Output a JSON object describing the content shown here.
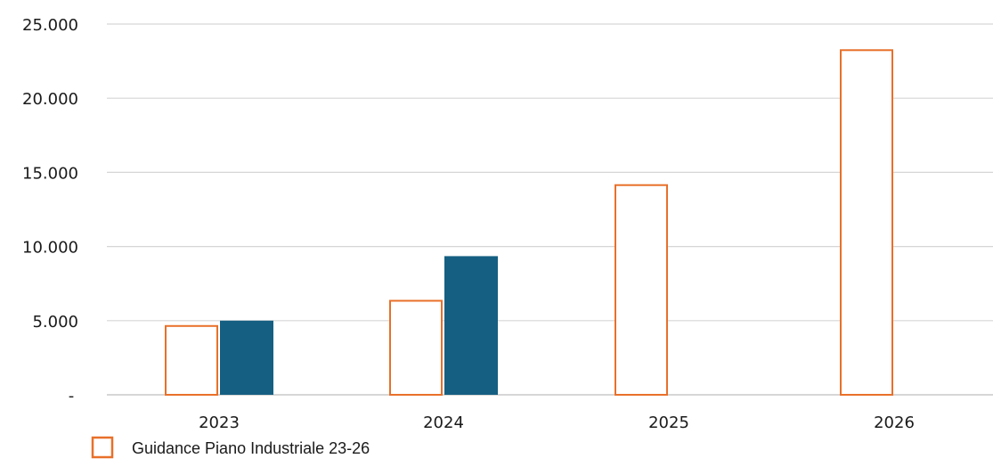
{
  "chart_data": {
    "type": "bar",
    "categories": [
      "2023",
      "2024",
      "2025",
      "2026"
    ],
    "ylim": [
      0,
      25000
    ],
    "y_ticks": [
      0,
      5000,
      10000,
      15000,
      20000,
      25000
    ],
    "y_tick_labels": [
      "-",
      "5.000",
      "10.000",
      "15.000",
      "20.000",
      "25.000"
    ],
    "grid": true,
    "legend_position": "bottom-left",
    "series": [
      {
        "name": "Guidance Piano Industriale 23-26",
        "style": "outline",
        "color": "#e8702a",
        "values": [
          4700,
          6400,
          14200,
          23300
        ]
      },
      {
        "style": "filled",
        "color": "#155f82",
        "values": [
          5000,
          9350,
          null,
          null
        ]
      }
    ],
    "legend": [
      {
        "label": "Guidance Piano Industriale 23-26",
        "color": "#e8702a",
        "style": "outline"
      }
    ]
  }
}
